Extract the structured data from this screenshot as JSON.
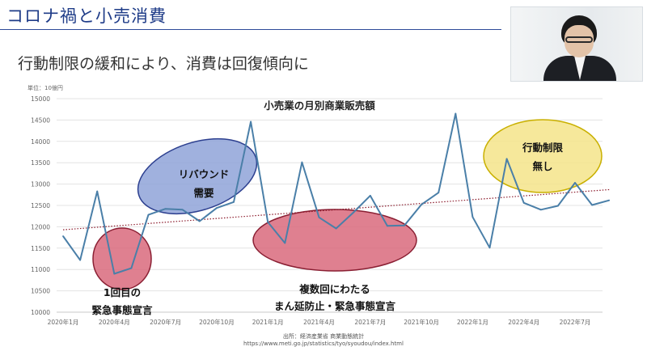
{
  "slide": {
    "title": "コロナ禍と小売消費",
    "subtitle": "行動制限の緩和により、消費は回復傾向に"
  },
  "colors": {
    "title": "#1f3c88",
    "line": "#4a7fa8",
    "trend": "#8b1a2b",
    "blue_ellipse": "#8fa3d8",
    "red_ellipse": "#d96a7d",
    "yellow_ellipse": "#f4e48a"
  },
  "chart_data": {
    "type": "line",
    "title": "小売業の月別商業販売額",
    "unit_label": "単位：10億円",
    "ylim": [
      10000,
      15000
    ],
    "yticks": [
      10000,
      10500,
      11000,
      11500,
      12000,
      12500,
      13000,
      13500,
      14000,
      14500,
      15000
    ],
    "xtick_labels": [
      "2020年1月",
      "2020年4月",
      "2020年7月",
      "2020年10月",
      "2021年1月",
      "2021年4月",
      "2021年7月",
      "2021年10月",
      "2022年1月",
      "2022年4月",
      "2022年7月"
    ],
    "grid": true,
    "trendline": {
      "style": "dotted",
      "start": 11930,
      "end": 12870
    },
    "series": [
      {
        "values": [
          11780,
          11220,
          12830,
          10900,
          11030,
          12280,
          12420,
          12400,
          12130,
          12440,
          12580,
          14460,
          12110,
          11620,
          13510,
          12220,
          11960,
          12330,
          12730,
          12020,
          12030,
          12520,
          12800,
          14650,
          12230,
          11510,
          13590,
          12560,
          12400,
          12490,
          13030,
          12510,
          12620
        ]
      }
    ],
    "annotations": [
      {
        "id": "first-emergency",
        "lines": [
          "1回目の",
          "緊急事態宣言"
        ],
        "color": "red"
      },
      {
        "id": "rebound",
        "lines": [
          "リバウンド",
          "需要"
        ],
        "color": "blue"
      },
      {
        "id": "multiple-emergency",
        "lines": [
          "複数回にわたる",
          "まん延防止・緊急事態宣言"
        ],
        "color": "red"
      },
      {
        "id": "no-restrictions",
        "lines": [
          "行動制限",
          "無し"
        ],
        "color": "yellow"
      }
    ]
  },
  "source": {
    "line1": "出所：経済産業省 商業動態統計",
    "line2": "https://www.meti.go.jp/statistics/tyo/syoudou/index.html"
  }
}
